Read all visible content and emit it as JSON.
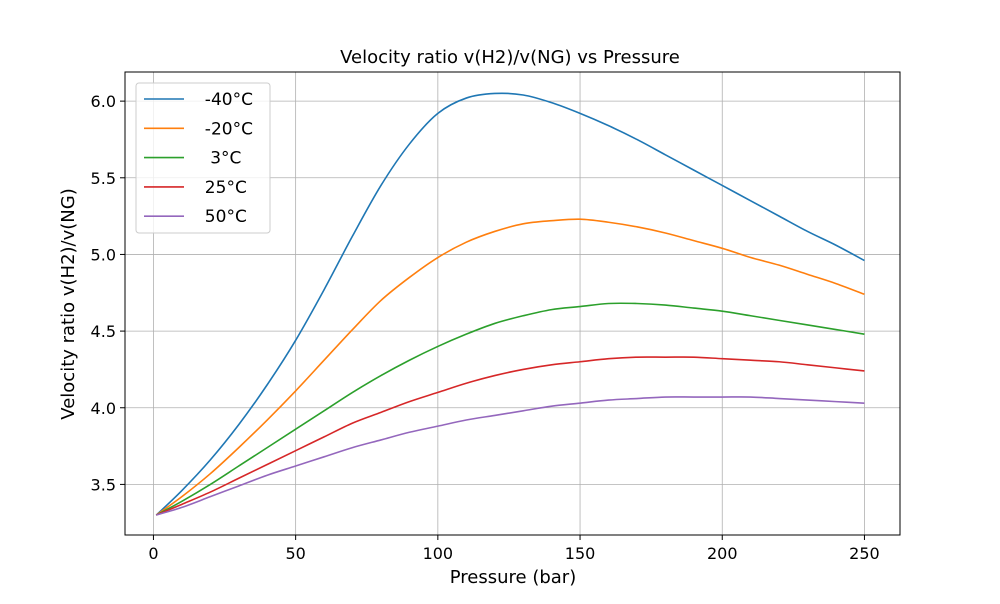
{
  "chart_data": {
    "type": "line",
    "title": "Velocity ratio v(H2)/v(NG)  vs Pressure",
    "xlabel": "Pressure (bar)",
    "ylabel": "Velocity ratio v(H2)/v(NG)",
    "xlim": [
      -10,
      262.5
    ],
    "ylim": [
      3.17,
      6.19
    ],
    "xticks": [
      0,
      50,
      100,
      150,
      200,
      250
    ],
    "yticks": [
      3.5,
      4.0,
      4.5,
      5.0,
      5.5,
      6.0
    ],
    "xtick_labels": [
      "0",
      "50",
      "100",
      "150",
      "200",
      "250"
    ],
    "ytick_labels": [
      "3.5",
      "4.0",
      "4.5",
      "5.0",
      "5.5",
      "6.0"
    ],
    "grid": true,
    "legend_position": "top-left",
    "series": [
      {
        "name": "  -40°C",
        "color": "#1f77b4",
        "x": [
          1,
          10,
          20,
          30,
          40,
          50,
          60,
          70,
          80,
          90,
          100,
          110,
          120,
          130,
          140,
          150,
          160,
          170,
          180,
          190,
          200,
          210,
          220,
          230,
          240,
          250
        ],
        "y": [
          3.3,
          3.46,
          3.66,
          3.89,
          4.15,
          4.44,
          4.77,
          5.12,
          5.45,
          5.72,
          5.92,
          6.02,
          6.05,
          6.04,
          5.99,
          5.92,
          5.84,
          5.75,
          5.65,
          5.55,
          5.45,
          5.35,
          5.25,
          5.15,
          5.06,
          4.96
        ]
      },
      {
        "name": "  -20°C",
        "color": "#ff7f0e",
        "x": [
          1,
          10,
          20,
          30,
          40,
          50,
          60,
          70,
          80,
          90,
          100,
          110,
          120,
          130,
          140,
          150,
          160,
          170,
          180,
          190,
          200,
          210,
          220,
          230,
          240,
          250
        ],
        "y": [
          3.3,
          3.42,
          3.57,
          3.74,
          3.92,
          4.11,
          4.31,
          4.51,
          4.7,
          4.85,
          4.98,
          5.08,
          5.15,
          5.2,
          5.22,
          5.23,
          5.21,
          5.18,
          5.14,
          5.09,
          5.04,
          4.98,
          4.93,
          4.87,
          4.81,
          4.74
        ]
      },
      {
        "name": "   3°C",
        "color": "#2ca02c",
        "x": [
          1,
          10,
          20,
          30,
          40,
          50,
          60,
          70,
          80,
          90,
          100,
          110,
          120,
          130,
          140,
          150,
          160,
          170,
          180,
          190,
          200,
          210,
          220,
          230,
          240,
          250
        ],
        "y": [
          3.3,
          3.39,
          3.5,
          3.62,
          3.74,
          3.86,
          3.98,
          4.1,
          4.21,
          4.31,
          4.4,
          4.48,
          4.55,
          4.6,
          4.64,
          4.66,
          4.68,
          4.68,
          4.67,
          4.65,
          4.63,
          4.6,
          4.57,
          4.54,
          4.51,
          4.48
        ]
      },
      {
        "name": "  25°C",
        "color": "#d62728",
        "x": [
          1,
          10,
          20,
          30,
          40,
          50,
          60,
          70,
          80,
          90,
          100,
          110,
          120,
          130,
          140,
          150,
          160,
          170,
          180,
          190,
          200,
          210,
          220,
          230,
          240,
          250
        ],
        "y": [
          3.3,
          3.37,
          3.45,
          3.54,
          3.63,
          3.72,
          3.81,
          3.9,
          3.97,
          4.04,
          4.1,
          4.16,
          4.21,
          4.25,
          4.28,
          4.3,
          4.32,
          4.33,
          4.33,
          4.33,
          4.32,
          4.31,
          4.3,
          4.28,
          4.26,
          4.24
        ]
      },
      {
        "name": "  50°C",
        "color": "#9467bd",
        "x": [
          1,
          10,
          20,
          30,
          40,
          50,
          60,
          70,
          80,
          90,
          100,
          110,
          120,
          130,
          140,
          150,
          160,
          170,
          180,
          190,
          200,
          210,
          220,
          230,
          240,
          250
        ],
        "y": [
          3.3,
          3.35,
          3.42,
          3.49,
          3.56,
          3.62,
          3.68,
          3.74,
          3.79,
          3.84,
          3.88,
          3.92,
          3.95,
          3.98,
          4.01,
          4.03,
          4.05,
          4.06,
          4.07,
          4.07,
          4.07,
          4.07,
          4.06,
          4.05,
          4.04,
          4.03
        ]
      }
    ]
  }
}
